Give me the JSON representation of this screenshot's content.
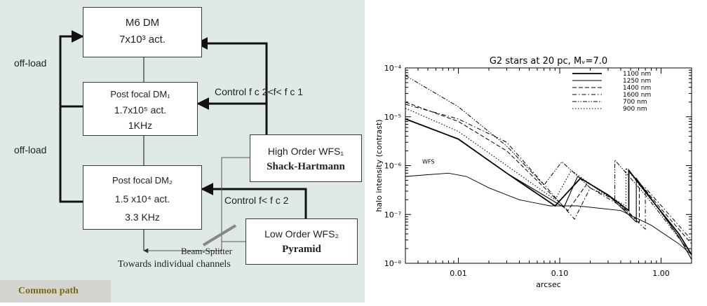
{
  "diagram": {
    "m6": {
      "line1": "M6 DM",
      "line2": "7x10³ act."
    },
    "pf1": {
      "line1": "Post focal DM₁",
      "line2": "1.7x10⁵ act.",
      "line3": "1KHz"
    },
    "pf2": {
      "line1": "Post focal DM₂",
      "line2": "1.5 x10⁴ act.",
      "line3": "3.3 KHz"
    },
    "hwfs": {
      "line1": "High Order WFS₁",
      "line2": "Shack-Hartmann"
    },
    "lwfs": {
      "line1": "Low Order WFS₂",
      "line2": "Pyramid"
    },
    "offload_top": "off-load",
    "offload_bottom": "off-load",
    "control1": "Control f c 2<f< f c 1",
    "control2": "Control f< f c 2",
    "beam_splitter": "Beam-Splitter",
    "towards": "Towards individual channels",
    "common_path": "Common path",
    "colors": {
      "background": "#dfe9e5",
      "common_path_text": "#7a6a10",
      "splitter": "#888888"
    }
  },
  "chart_data": {
    "type": "line",
    "title": "G2 stars at 20 pc, Mᵥ=7.0",
    "xlabel": "arcsec",
    "ylabel": "halo intensity (contrast)",
    "xscale": "log",
    "yscale": "log",
    "xlim": [
      0.003,
      2.0
    ],
    "ylim": [
      1e-08,
      0.0001
    ],
    "xticks": [
      0.01,
      0.1,
      1.0
    ],
    "xtick_labels": [
      "0.01",
      "0.10",
      "1.00"
    ],
    "yticks": [
      1e-08,
      1e-07,
      1e-06,
      1e-05,
      0.0001
    ],
    "ytick_labels": [
      "10⁻⁸",
      "10⁻⁷",
      "10⁻⁶",
      "10⁻⁵",
      "10⁻⁴"
    ],
    "legend_position": "top-right",
    "annotation": "WFS",
    "series": [
      {
        "name": "1100 nm",
        "style": "solid-thick",
        "x": [
          0.003,
          0.01,
          0.03,
          0.09,
          0.16,
          0.3,
          0.48,
          0.48,
          0.9,
          1.5,
          2.0
        ],
        "y": [
          9e-06,
          3.5e-06,
          7e-07,
          1.5e-07,
          5.5e-07,
          2.5e-07,
          1.2e-07,
          8e-07,
          1.5e-07,
          4e-08,
          1.5e-08
        ]
      },
      {
        "name": "1250 nm",
        "style": "solid",
        "x": [
          0.003,
          0.01,
          0.03,
          0.11,
          0.15,
          0.3,
          0.57,
          0.57,
          0.9,
          1.5,
          2.0
        ],
        "y": [
          9e-06,
          3.5e-06,
          7e-07,
          1.4e-07,
          6e-07,
          2.5e-07,
          7e-08,
          5.5e-07,
          1.5e-07,
          3.5e-08,
          1.2e-08
        ]
      },
      {
        "name": "1400 nm",
        "style": "dashed",
        "x": [
          0.003,
          0.01,
          0.03,
          0.12,
          0.19,
          0.35,
          0.61,
          0.61,
          1.0,
          2.0
        ],
        "y": [
          2e-05,
          8e-06,
          2e-06,
          1.2e-07,
          4.5e-07,
          2e-07,
          7e-08,
          4.5e-07,
          1.3e-07,
          2.5e-08
        ]
      },
      {
        "name": "1600 nm",
        "style": "dash-dot",
        "x": [
          0.003,
          0.01,
          0.03,
          0.14,
          0.2,
          0.4,
          0.7,
          0.7,
          1.2,
          2.0
        ],
        "y": [
          1.8e-05,
          9e-06,
          3e-06,
          8e-08,
          3.5e-07,
          1.5e-07,
          5e-08,
          3.5e-07,
          1e-07,
          3e-08
        ]
      },
      {
        "name": "700 nm",
        "style": "dash-dot-dot",
        "x": [
          0.003,
          0.01,
          0.03,
          0.07,
          0.105,
          0.2,
          0.35,
          0.35,
          0.7,
          1.2,
          2.0
        ],
        "y": [
          7e-05,
          1.6e-05,
          2.5e-06,
          4e-07,
          1.2e-06,
          3.5e-07,
          2e-07,
          1.3e-06,
          2.5e-07,
          6e-08,
          1.5e-08
        ]
      },
      {
        "name": "900 nm",
        "style": "dotted",
        "x": [
          0.003,
          0.01,
          0.03,
          0.09,
          0.13,
          0.25,
          0.45,
          0.45,
          0.8,
          1.5,
          2.0
        ],
        "y": [
          1.5e-05,
          5e-06,
          1e-06,
          2e-07,
          8e-07,
          3e-07,
          1.5e-07,
          9e-07,
          2e-07,
          4e-08,
          1.5e-08
        ]
      },
      {
        "name": "WFS",
        "style": "solid-thin",
        "x": [
          0.003,
          0.005,
          0.008,
          0.012,
          0.02,
          0.04,
          0.08,
          0.15,
          0.4,
          0.8,
          1.5,
          2.0
        ],
        "y": [
          6e-07,
          6.5e-07,
          7e-07,
          6e-07,
          3.5e-07,
          2e-07,
          1.5e-07,
          1.5e-07,
          1.2e-07,
          6e-08,
          2.5e-08,
          1.5e-08
        ]
      }
    ]
  }
}
